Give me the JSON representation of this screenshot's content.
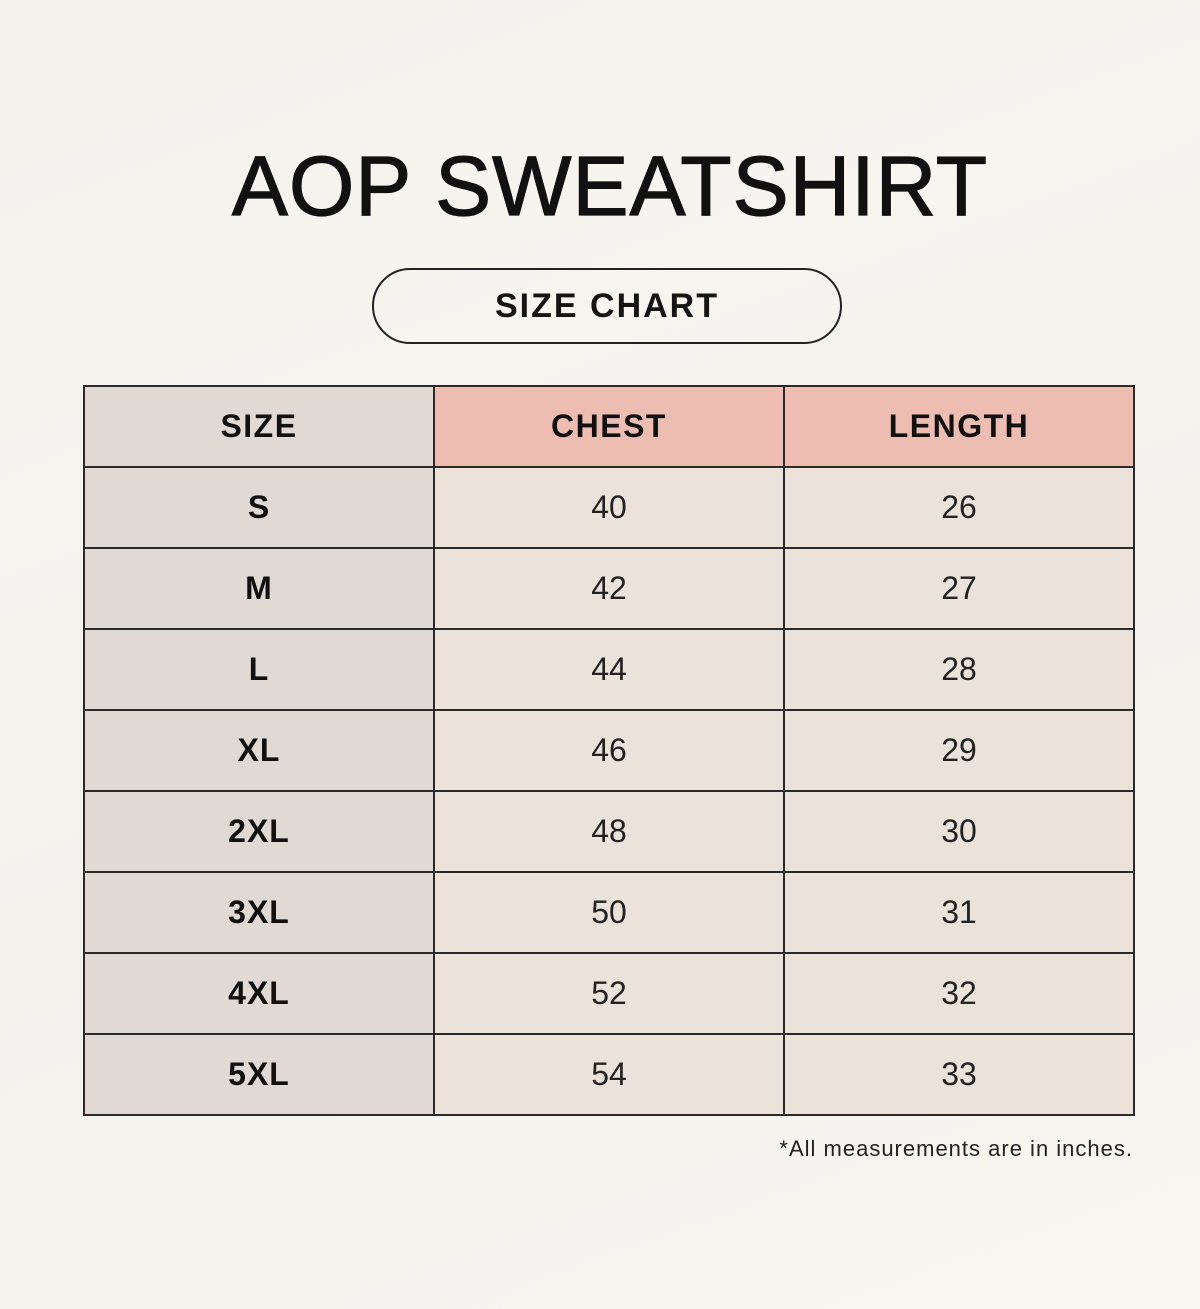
{
  "title": "AOP SWEATSHIRT",
  "subtitle": "SIZE CHART",
  "table": {
    "headers": [
      "SIZE",
      "CHEST",
      "LENGTH"
    ],
    "rows": [
      {
        "size": "S",
        "chest": "40",
        "length": "26"
      },
      {
        "size": "M",
        "chest": "42",
        "length": "27"
      },
      {
        "size": "L",
        "chest": "44",
        "length": "28"
      },
      {
        "size": "XL",
        "chest": "46",
        "length": "29"
      },
      {
        "size": "2XL",
        "chest": "48",
        "length": "30"
      },
      {
        "size": "3XL",
        "chest": "50",
        "length": "31"
      },
      {
        "size": "4XL",
        "chest": "52",
        "length": "32"
      },
      {
        "size": "5XL",
        "chest": "54",
        "length": "33"
      }
    ]
  },
  "footnote": "*All measurements are in inches.",
  "colors": {
    "background": "#f6f4ef",
    "size_column": "#e0d9d4",
    "header_accent": "#ecbdb0",
    "value_cells": "#ebe3da",
    "border": "#2a2a2a"
  }
}
